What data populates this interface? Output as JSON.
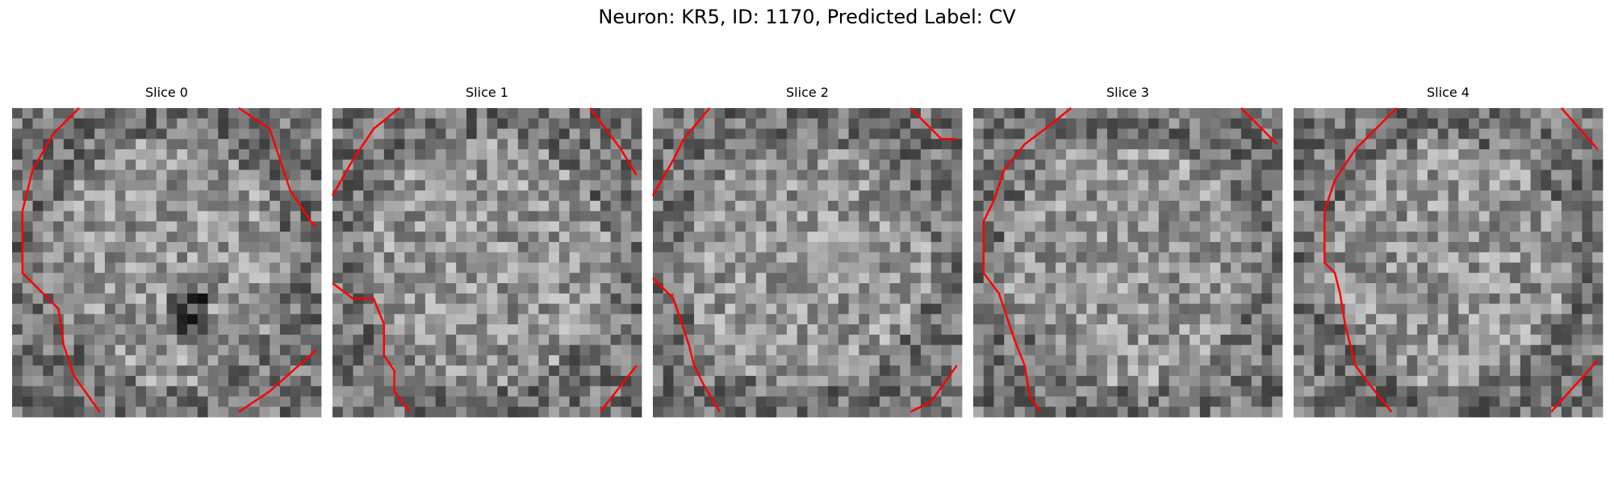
{
  "title": "Neuron: KR5, ID: 1170, Predicted Label: CV",
  "panels": [
    {
      "title": "Slice 0"
    },
    {
      "title": "Slice 1"
    },
    {
      "title": "Slice 2"
    },
    {
      "title": "Slice 3"
    },
    {
      "title": "Slice 4"
    }
  ]
}
